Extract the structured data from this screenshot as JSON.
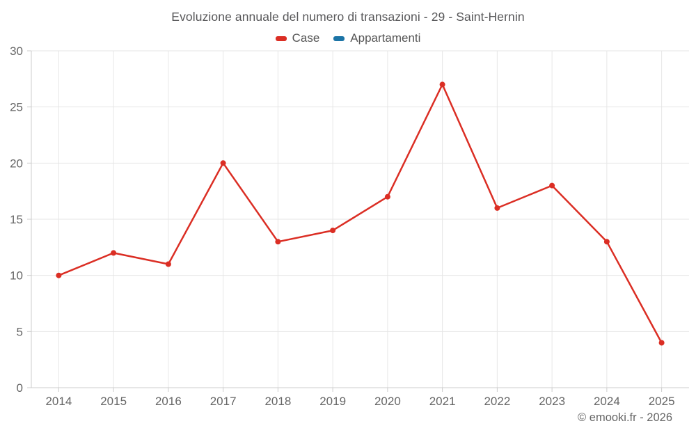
{
  "title": "Evoluzione annuale del numero di transazioni - 29 - Saint-Hernin",
  "legend": {
    "items": [
      {
        "label": "Case",
        "color": "#db2e24"
      },
      {
        "label": "Appartamenti",
        "color": "#1c74a6"
      }
    ]
  },
  "footer": {
    "copyright": "© emooki.fr - 2026"
  },
  "colors": {
    "series_case": "#db2e24",
    "series_appartamenti": "#1c74a6",
    "gridline": "#e6e6e6",
    "axis_line": "#cccccc",
    "tick_label": "#666666",
    "title_text": "#58585a",
    "background": "#ffffff"
  },
  "chart_data": {
    "type": "line",
    "title": "Evoluzione annuale del numero di transazioni - 29 - Saint-Hernin",
    "categories": [
      "2014",
      "2015",
      "2016",
      "2017",
      "2018",
      "2019",
      "2020",
      "2021",
      "2022",
      "2023",
      "2024",
      "2025"
    ],
    "series": [
      {
        "name": "Case",
        "color": "#db2e24",
        "values": [
          10,
          12,
          11,
          20,
          13,
          14,
          17,
          27,
          16,
          18,
          13,
          4
        ]
      },
      {
        "name": "Appartamenti",
        "color": "#1c74a6",
        "values": []
      }
    ],
    "xlabel": "",
    "ylabel": "",
    "ylim": [
      0,
      30
    ],
    "yticks": [
      0,
      5,
      10,
      15,
      20,
      25,
      30
    ],
    "grid": true,
    "legend_position": "top",
    "marker_radius": 4,
    "line_width": 2.5
  }
}
